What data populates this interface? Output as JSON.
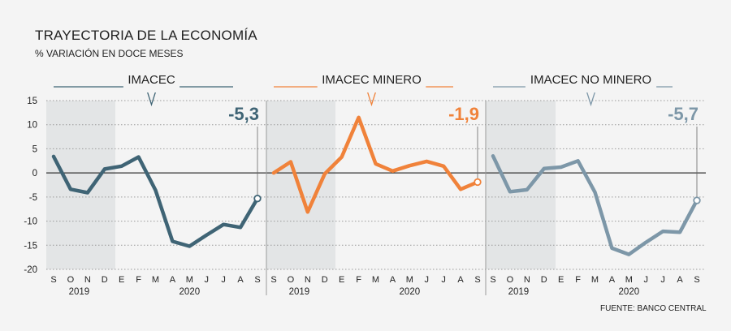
{
  "header": {
    "title": "TRAYECTORIA DE LA ECONOMÍA",
    "subtitle": "% VARIACIÓN EN DOCE MESES"
  },
  "footer": {
    "source": "FUENTE: BANCO CENTRAL"
  },
  "chart_data": {
    "type": "line",
    "ylim": [
      -20,
      15
    ],
    "yticks": [
      "15",
      "10",
      "5",
      "0",
      "-5",
      "-10",
      "-15",
      "-20"
    ],
    "months": [
      "S",
      "O",
      "N",
      "D",
      "E",
      "F",
      "M",
      "A",
      "M",
      "J",
      "J",
      "A",
      "S"
    ],
    "years": [
      {
        "label": "2019",
        "start": 0,
        "end": 3
      },
      {
        "label": "2020",
        "start": 4,
        "end": 12
      }
    ],
    "shaded_range": [
      "S",
      "D"
    ],
    "grid": true,
    "panels": [
      {
        "name": "IMACEC",
        "color": "#3f6475",
        "last_value": "-5,3",
        "values": [
          3.4,
          -3.4,
          -4.1,
          0.8,
          1.4,
          3.3,
          -3.6,
          -14.2,
          -15.2,
          -12.9,
          -10.7,
          -11.3,
          -5.3
        ]
      },
      {
        "name": "IMACEC MINERO",
        "color": "#f0823a",
        "last_value": "-1,9",
        "values": [
          0.0,
          2.3,
          -8.1,
          -0.2,
          3.3,
          11.5,
          1.9,
          0.4,
          1.5,
          2.4,
          1.4,
          -3.4,
          -1.9
        ]
      },
      {
        "name": "IMACEC NO MINERO",
        "color": "#7d97a8",
        "last_value": "-5,7",
        "values": [
          3.5,
          -3.9,
          -3.5,
          0.9,
          1.2,
          2.5,
          -4.0,
          -15.6,
          -16.9,
          -14.4,
          -12.1,
          -12.3,
          -5.7
        ]
      }
    ]
  }
}
